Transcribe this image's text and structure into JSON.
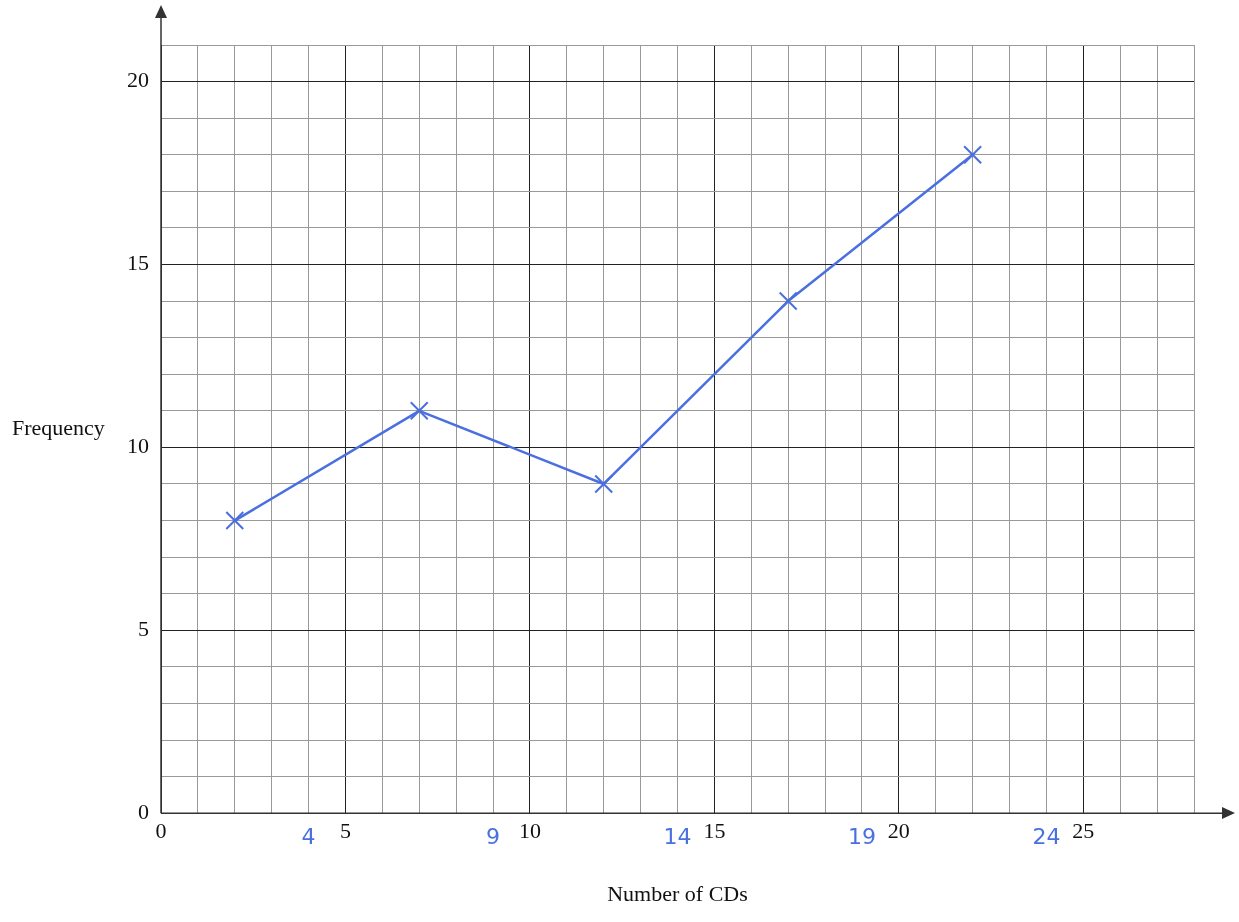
{
  "chart_data": {
    "type": "line",
    "xlabel": "Number of CDs",
    "ylabel": "Frequency",
    "x": [
      2,
      7,
      12,
      17,
      22
    ],
    "series": [
      {
        "color": "#4a6fe0",
        "values": [
          8,
          11,
          9,
          14,
          18
        ]
      }
    ],
    "xlim": [
      0,
      28
    ],
    "ylim": [
      0,
      21
    ],
    "xticks": [
      0,
      {
        "value": 1,
        "label": null
      },
      {
        "value": 2,
        "label": null
      },
      {
        "value": 3,
        "label": null
      },
      {
        "value": 4,
        "label": null
      },
      5,
      {
        "value": 6,
        "label": null
      },
      {
        "value": 7,
        "label": null
      },
      {
        "value": 8,
        "label": null
      },
      {
        "value": 9,
        "label": null
      },
      10,
      {
        "value": 11,
        "label": null
      },
      {
        "value": 12,
        "label": null
      },
      {
        "value": 13,
        "label": null
      },
      {
        "value": 14,
        "label": null
      },
      15,
      {
        "value": 16,
        "label": null
      },
      {
        "value": 17,
        "label": null
      },
      {
        "value": 18,
        "label": null
      },
      {
        "value": 19,
        "label": null
      },
      20,
      {
        "value": 21,
        "label": null
      },
      {
        "value": 22,
        "label": null
      },
      {
        "value": 23,
        "label": null
      },
      {
        "value": 24,
        "label": null
      },
      25,
      {
        "value": 26,
        "label": null
      },
      {
        "value": 27,
        "label": null
      },
      {
        "value": 28,
        "label": null
      }
    ],
    "yticks": [
      0,
      {
        "value": 1,
        "label": null
      },
      {
        "value": 2,
        "label": null
      },
      {
        "value": 3,
        "label": null
      },
      {
        "value": 4,
        "label": null
      },
      5,
      {
        "value": 6,
        "label": null
      },
      {
        "value": 7,
        "label": null
      },
      {
        "value": 8,
        "label": null
      },
      {
        "value": 9,
        "label": null
      },
      10,
      {
        "value": 11,
        "label": null
      },
      {
        "value": 12,
        "label": null
      },
      {
        "value": 13,
        "label": null
      },
      {
        "value": 14,
        "label": null
      },
      15,
      {
        "value": 16,
        "label": null
      },
      {
        "value": 17,
        "label": null
      },
      {
        "value": 18,
        "label": null
      },
      {
        "value": 19,
        "label": null
      },
      20,
      {
        "value": 21,
        "label": null
      }
    ],
    "annotations": [
      "4",
      "9",
      "14",
      "19",
      "24"
    ],
    "grid": true,
    "legend": false,
    "marker": "cross",
    "line_style": "solid"
  }
}
